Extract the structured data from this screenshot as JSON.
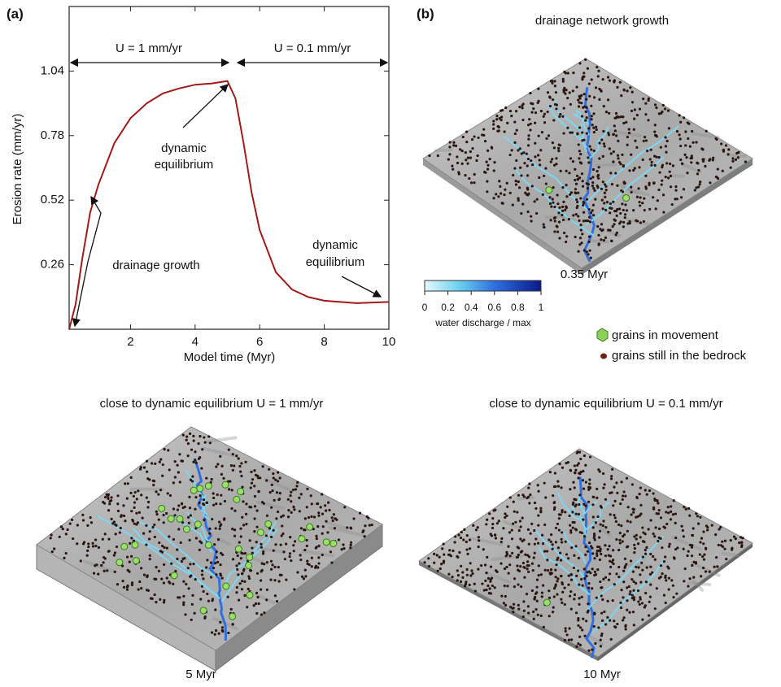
{
  "chart_data": {
    "type": "line",
    "panel_label": "(a)",
    "x_label": "Model time (Myr)",
    "y_label": "Erosion rate (mm/yr)",
    "x": [
      0.1,
      0.3,
      0.5,
      0.75,
      1,
      1.5,
      2,
      2.5,
      3,
      3.5,
      4,
      4.5,
      5,
      5.25,
      5.5,
      5.75,
      6,
      6.5,
      7,
      7.5,
      8,
      9,
      10
    ],
    "values": [
      0,
      0.1,
      0.28,
      0.47,
      0.58,
      0.75,
      0.85,
      0.91,
      0.95,
      0.97,
      0.985,
      0.99,
      1.0,
      0.93,
      0.75,
      0.55,
      0.4,
      0.23,
      0.16,
      0.13,
      0.115,
      0.105,
      0.11
    ],
    "color": "#a11a1a",
    "xlim": [
      0.1,
      10
    ],
    "xticks": [
      2,
      4,
      6,
      8,
      10
    ],
    "ylim": [
      0,
      1.3
    ],
    "yticks": [
      0.26,
      0.52,
      0.78,
      1.04
    ],
    "grid": false,
    "annotations": {
      "uplift_high": "U = 1 mm/yr",
      "uplift_low": "U = 0.1 mm/yr",
      "equilibrium_1": [
        "dynamic",
        "equilibrium"
      ],
      "equilibrium_2": [
        "dynamic",
        "equilibrium"
      ],
      "drainage": "drainage growth"
    }
  },
  "panel_b": {
    "label": "(b)",
    "title": "drainage network growth",
    "time": "0.35 Myr",
    "colorbar": {
      "ticks": [
        0,
        0.2,
        0.4,
        0.6,
        0.8,
        1
      ],
      "label": "water discharge / max"
    },
    "legend": [
      "grains in movement",
      "grains still in the bedrock"
    ]
  },
  "bottom_left": {
    "title": "close to dynamic equilibrium U = 1 mm/yr",
    "time": "5 Myr"
  },
  "bottom_right": {
    "title": "close to dynamic equilibrium U = 0.1 mm/yr",
    "time": "10 Myr"
  }
}
